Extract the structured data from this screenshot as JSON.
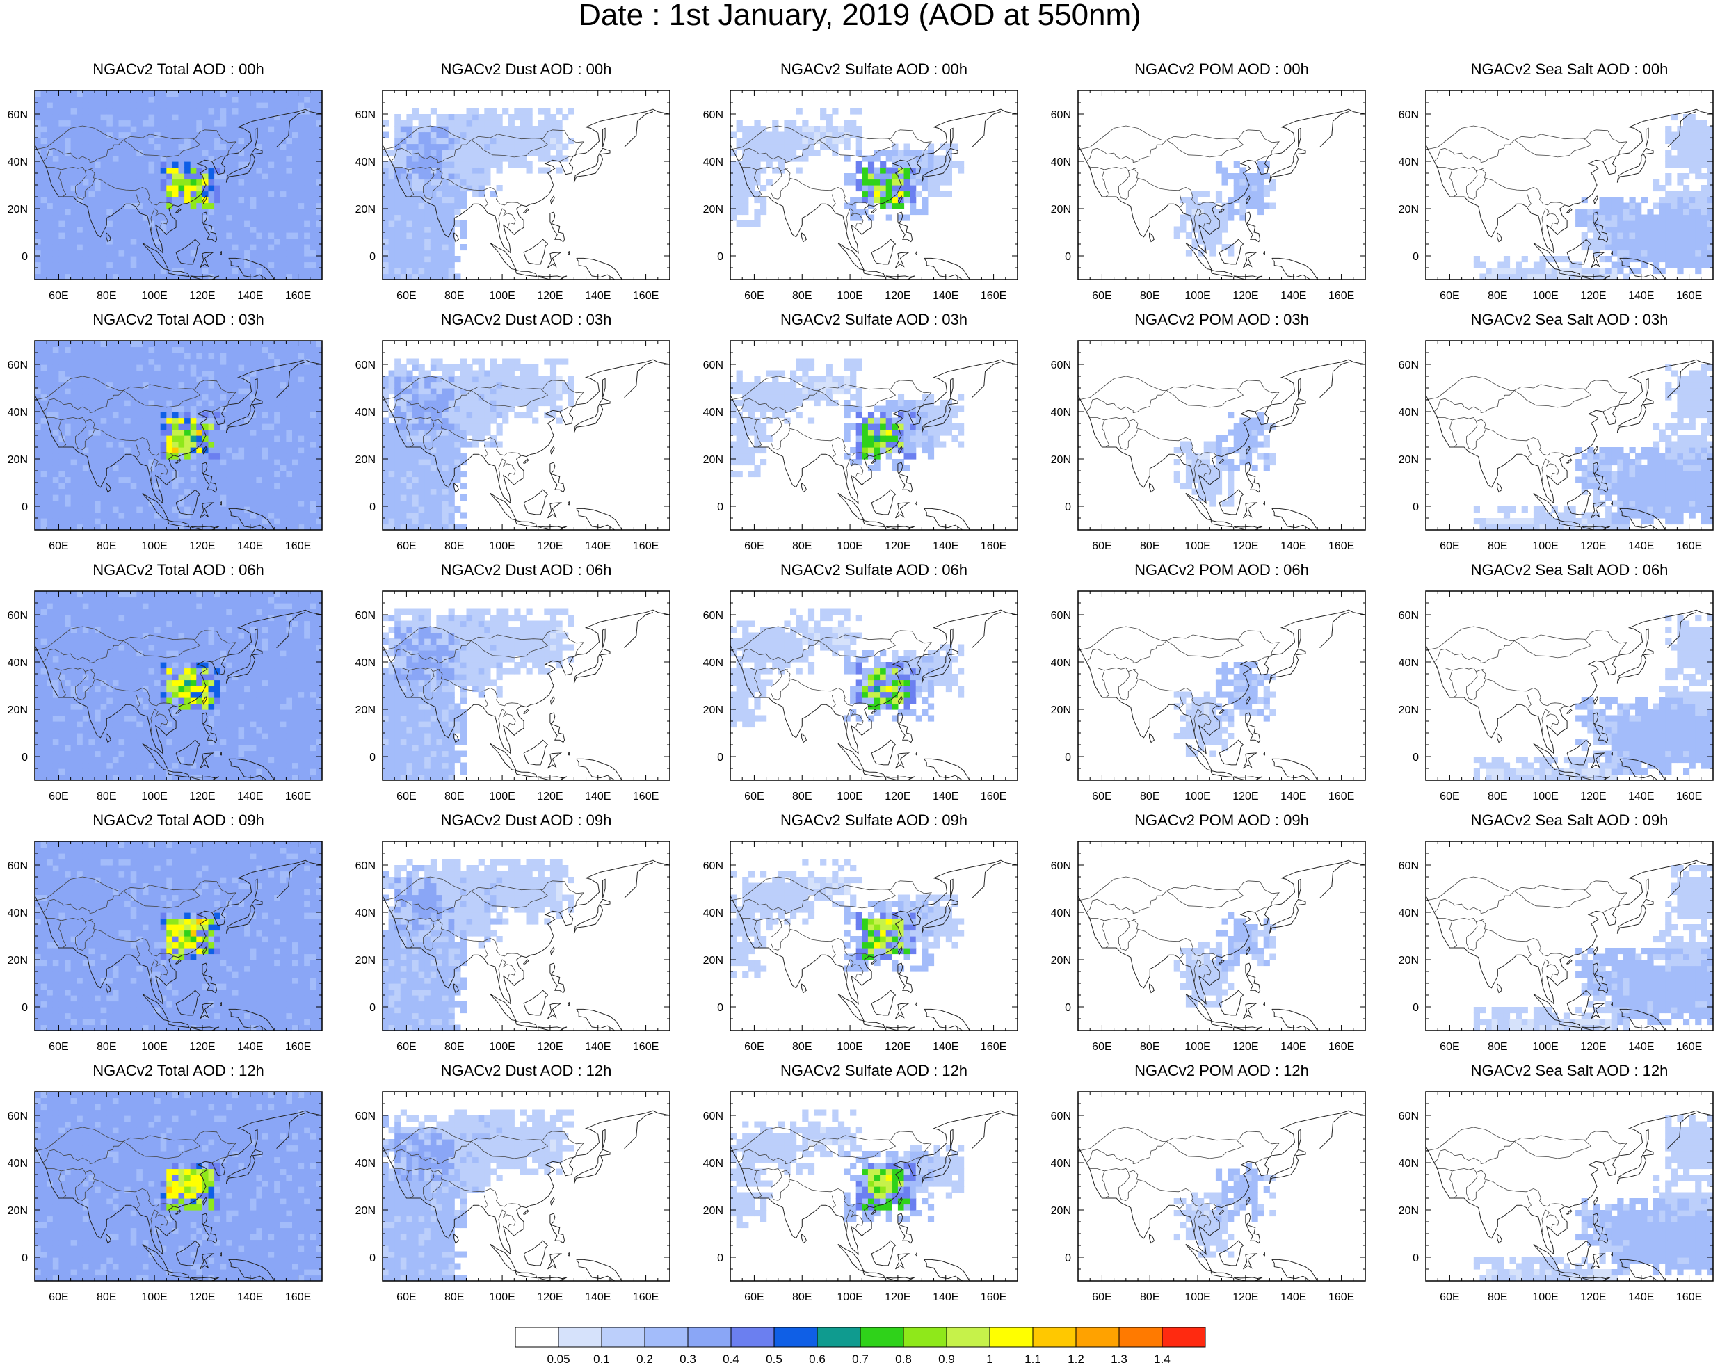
{
  "title": "Date : 1st January, 2019 (AOD at 550nm)",
  "panels": [
    {
      "title": "NGACv2 Total AOD : 00h",
      "type": "total"
    },
    {
      "title": "NGACv2 Dust AOD : 00h",
      "type": "dust"
    },
    {
      "title": "NGACv2 Sulfate AOD : 00h",
      "type": "sulfate"
    },
    {
      "title": "NGACv2 POM AOD : 00h",
      "type": "pom"
    },
    {
      "title": "NGACv2 Sea Salt AOD : 00h",
      "type": "seasalt"
    },
    {
      "title": "NGACv2 Total AOD : 03h",
      "type": "total"
    },
    {
      "title": "NGACv2 Dust AOD : 03h",
      "type": "dust"
    },
    {
      "title": "NGACv2 Sulfate AOD : 03h",
      "type": "sulfate"
    },
    {
      "title": "NGACv2 POM AOD : 03h",
      "type": "pom"
    },
    {
      "title": "NGACv2 Sea Salt AOD : 03h",
      "type": "seasalt"
    },
    {
      "title": "NGACv2 Total AOD : 06h",
      "type": "total"
    },
    {
      "title": "NGACv2 Dust AOD : 06h",
      "type": "dust"
    },
    {
      "title": "NGACv2 Sulfate AOD : 06h",
      "type": "sulfate"
    },
    {
      "title": "NGACv2 POM AOD : 06h",
      "type": "pom"
    },
    {
      "title": "NGACv2 Sea Salt AOD : 06h",
      "type": "seasalt"
    },
    {
      "title": "NGACv2 Total AOD : 09h",
      "type": "total"
    },
    {
      "title": "NGACv2 Dust AOD : 09h",
      "type": "dust"
    },
    {
      "title": "NGACv2 Sulfate AOD : 09h",
      "type": "sulfate"
    },
    {
      "title": "NGACv2 POM AOD : 09h",
      "type": "pom"
    },
    {
      "title": "NGACv2 Sea Salt  AOD : 09h",
      "type": "seasalt"
    },
    {
      "title": "NGACv2 Total AOD  : 12h",
      "type": "total"
    },
    {
      "title": "NGACv2 Dust AOD : 12h",
      "type": "dust"
    },
    {
      "title": "NGACv2 Sulfate AOD : 12h",
      "type": "sulfate"
    },
    {
      "title": "NGACv2 POM  AOD : 12h",
      "type": "pom"
    },
    {
      "title": "NGACv2 Sea Salt  AOD : 12h",
      "type": "seasalt"
    }
  ],
  "map_extent": {
    "lon": [
      50,
      170
    ],
    "lat": [
      -10,
      70
    ]
  },
  "x_ticks": [
    "60E",
    "80E",
    "100E",
    "120E",
    "140E",
    "160E"
  ],
  "x_tick_values": [
    60,
    80,
    100,
    120,
    140,
    160
  ],
  "y_ticks": [
    "60N",
    "40N",
    "20N",
    "0"
  ],
  "y_tick_values": [
    60,
    40,
    20,
    0
  ],
  "colorbar": {
    "labels": [
      "0.05",
      "0.1",
      "0.2",
      "0.3",
      "0.4",
      "0.5",
      "0.6",
      "0.7",
      "0.8",
      "0.9",
      "1",
      "1.1",
      "1.2",
      "1.3",
      "1.4"
    ],
    "colors": [
      "#ffffff",
      "#d6e2fb",
      "#bccffb",
      "#a3bcfa",
      "#8aa6f6",
      "#6b7ff0",
      "#0f5fe6",
      "#0f9b8f",
      "#2fd21a",
      "#8fe81a",
      "#c6f24a",
      "#ffff00",
      "#ffc800",
      "#ffa200",
      "#ff7a00",
      "#ff2a10"
    ]
  }
}
